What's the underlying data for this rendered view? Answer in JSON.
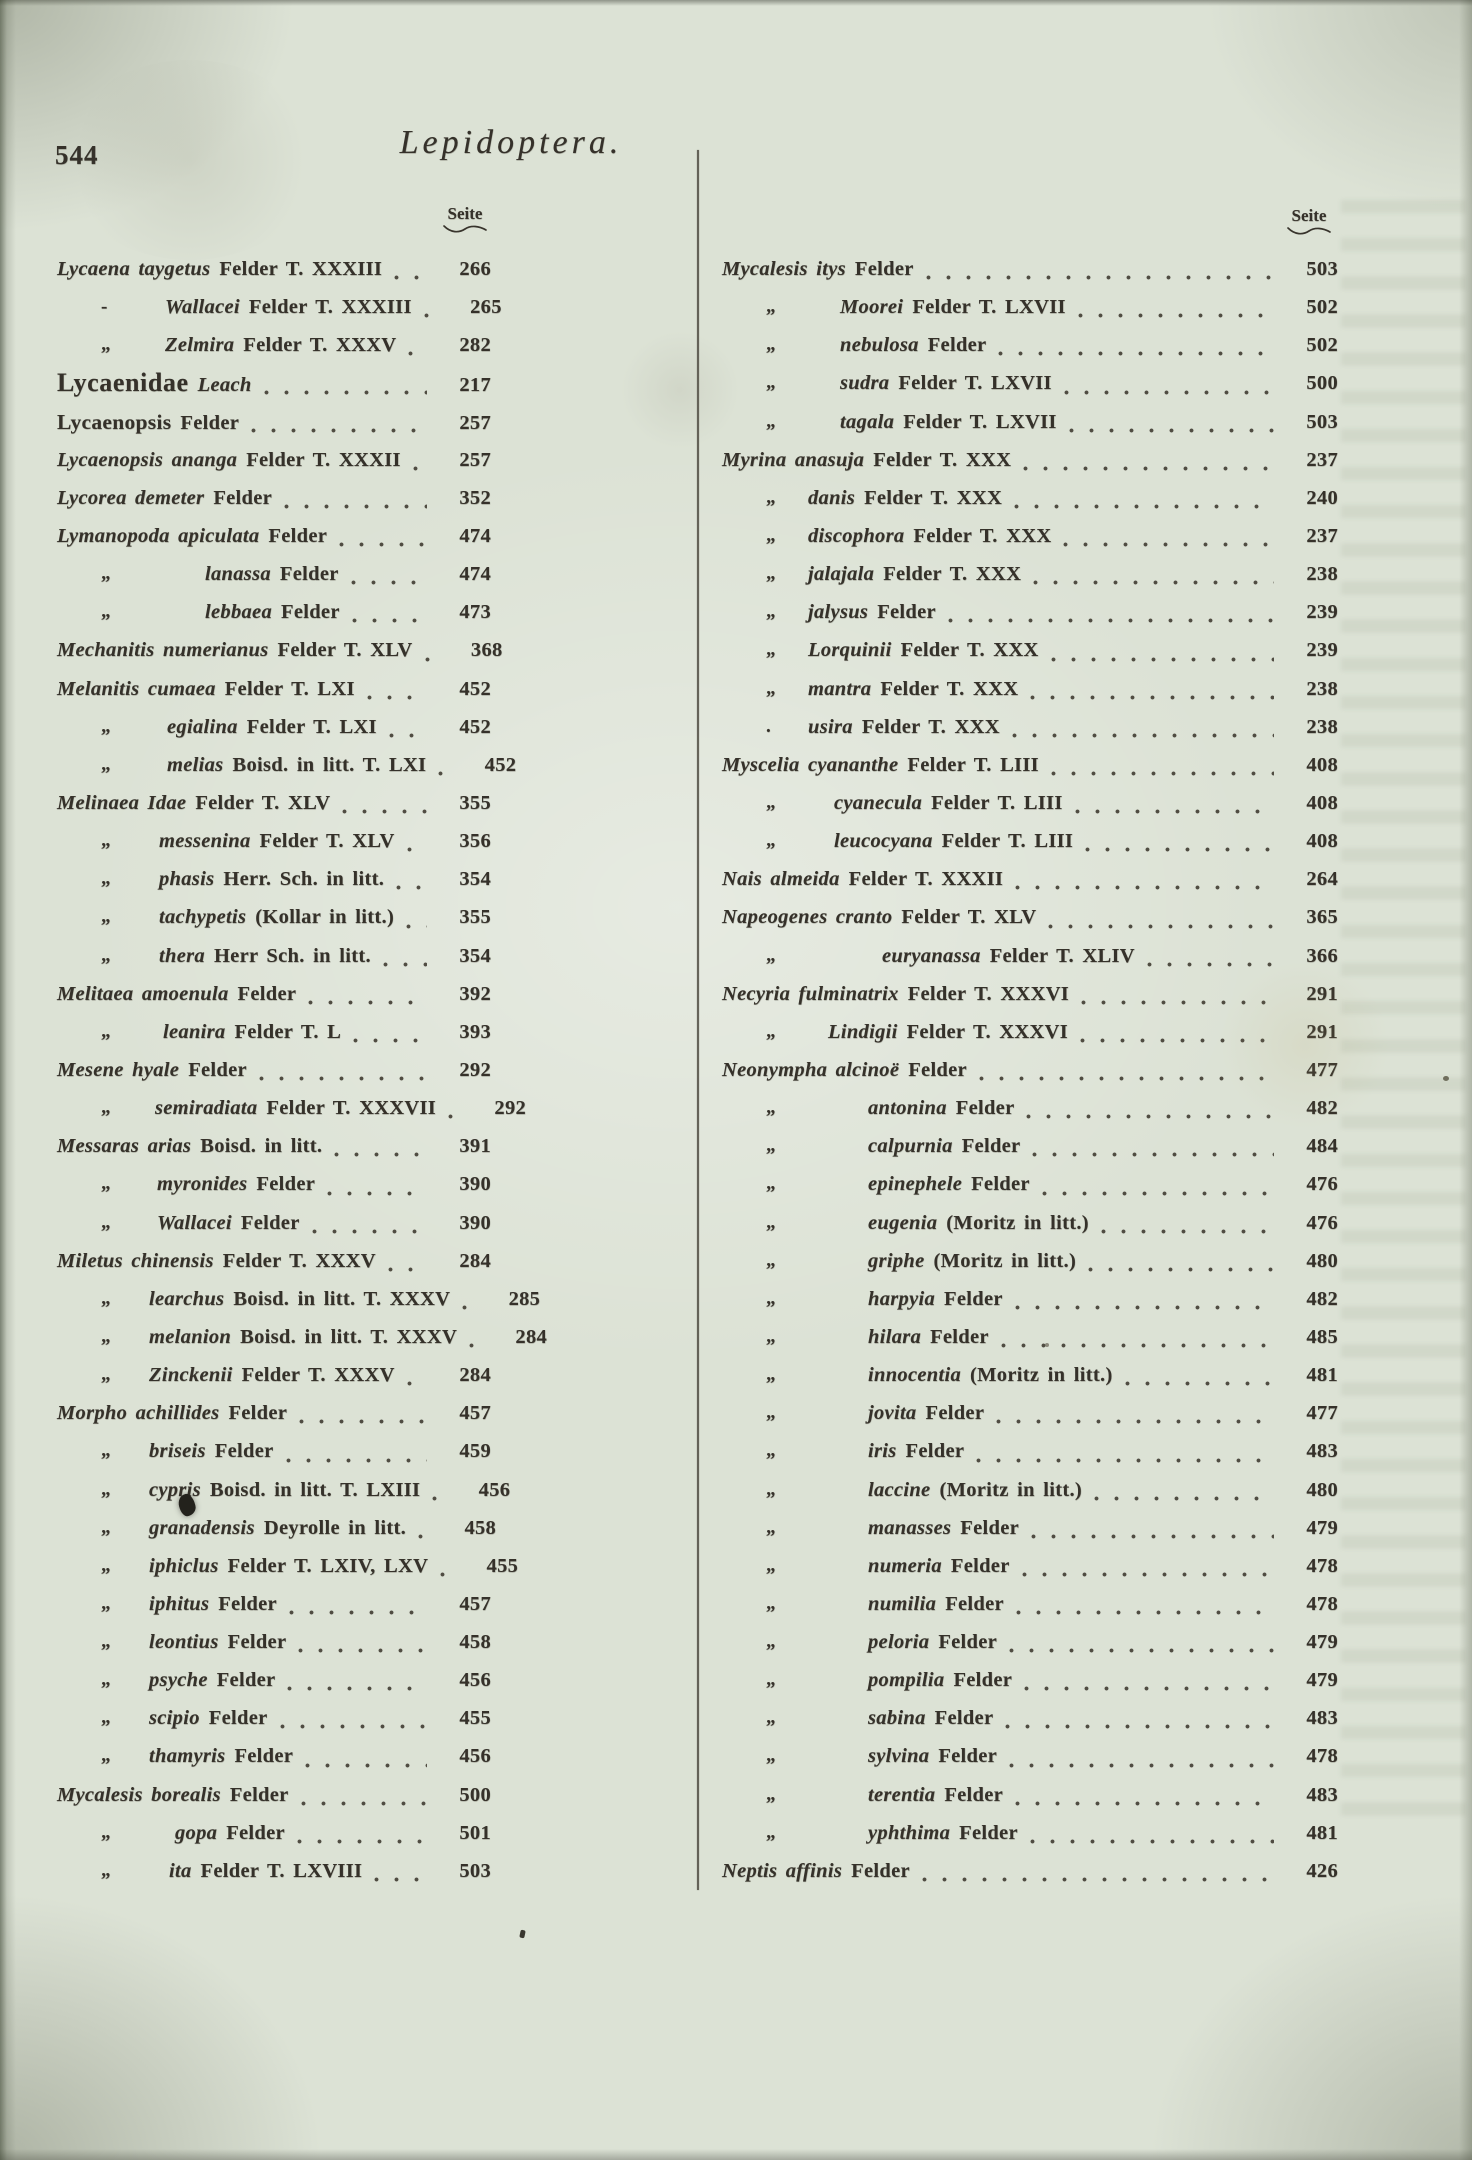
{
  "page": {
    "number": "544",
    "title": "Lepidoptera.",
    "column_header": "Seite"
  },
  "colors": {
    "ink": "#35312a",
    "paper": "#dce2d5"
  },
  "columns": {
    "left": [
      {
        "q": "",
        "n": "Lycaena taygetus",
        "a": "Felder T. XXXIII",
        "p": "266",
        "k": "g",
        "i": 0
      },
      {
        "q": "-",
        "n": "Wallacei",
        "a": "Felder T. XXXIII",
        "p": "265",
        "k": "s",
        "i": 108
      },
      {
        "q": "„",
        "n": "Zelmira",
        "a": "Felder T. XXXV",
        "p": "282",
        "k": "s",
        "i": 108
      },
      {
        "q": "",
        "n": "Lycaenidae",
        "a": "Leach",
        "p": "217",
        "k": "f",
        "i": 0
      },
      {
        "q": "",
        "n": "Lycaenopsis",
        "a": "Felder",
        "p": "257",
        "k": "b",
        "i": 0
      },
      {
        "q": "",
        "n": "Lycaenopsis ananga",
        "a": "Felder T. XXXII",
        "p": "257",
        "k": "g",
        "i": 0
      },
      {
        "q": "",
        "n": "Lycorea demeter",
        "a": "Felder",
        "p": "352",
        "k": "g",
        "i": 0
      },
      {
        "q": "",
        "n": "Lymanopoda apiculata",
        "a": "Felder",
        "p": "474",
        "k": "g",
        "i": 0
      },
      {
        "q": "„",
        "n": "lanassa",
        "a": "Felder",
        "p": "474",
        "k": "s",
        "i": 148
      },
      {
        "q": "„",
        "n": "lebbaea",
        "a": "Felder",
        "p": "473",
        "k": "s",
        "i": 148
      },
      {
        "q": "",
        "n": "Mechanitis numerianus",
        "a": "Felder T. XLV",
        "p": "368",
        "k": "g",
        "i": 0
      },
      {
        "q": "",
        "n": "Melanitis cumaea",
        "a": "Felder T. LXI",
        "p": "452",
        "k": "g",
        "i": 0
      },
      {
        "q": "„",
        "n": "egialina",
        "a": "Felder T. LXI",
        "p": "452",
        "k": "s",
        "i": 110
      },
      {
        "q": "„",
        "n": "melias",
        "a": "Boisd. in litt. T. LXI",
        "p": "452",
        "k": "s",
        "i": 110
      },
      {
        "q": "",
        "n": "Melinaea Idae",
        "a": "Felder T. XLV",
        "p": "355",
        "k": "g",
        "i": 0
      },
      {
        "q": "„",
        "n": "messenina",
        "a": "Felder T. XLV",
        "p": "356",
        "k": "s",
        "i": 102
      },
      {
        "q": "„",
        "n": "phasis",
        "a": "Herr. Sch. in litt.",
        "p": "354",
        "k": "s",
        "i": 102
      },
      {
        "q": "„",
        "n": "tachypetis",
        "a": "(Kollar in litt.)",
        "p": "355",
        "k": "s",
        "i": 102
      },
      {
        "q": "„",
        "n": "thera",
        "a": "Herr Sch. in litt.",
        "p": "354",
        "k": "s",
        "i": 102
      },
      {
        "q": "",
        "n": "Melitaea amoenula",
        "a": "Felder",
        "p": "392",
        "k": "g",
        "i": 0
      },
      {
        "q": "„",
        "n": "leanira",
        "a": "Felder T. L",
        "p": "393",
        "k": "s",
        "i": 106
      },
      {
        "q": "",
        "n": "Mesene hyale",
        "a": "Felder",
        "p": "292",
        "k": "g",
        "i": 0
      },
      {
        "q": "„",
        "n": "semiradiata",
        "a": "Felder T. XXXVII",
        "p": "292",
        "k": "s",
        "i": 98
      },
      {
        "q": "",
        "n": "Messaras arias",
        "a": "Boisd. in litt.",
        "p": "391",
        "k": "g",
        "i": 0
      },
      {
        "q": "„",
        "n": "myronides",
        "a": "Felder",
        "p": "390",
        "k": "s",
        "i": 100
      },
      {
        "q": "„",
        "n": "Wallacei",
        "a": "Felder",
        "p": "390",
        "k": "s",
        "i": 100
      },
      {
        "q": "",
        "n": "Miletus chinensis",
        "a": "Felder T. XXXV",
        "p": "284",
        "k": "g",
        "i": 0
      },
      {
        "q": "„",
        "n": "learchus",
        "a": "Boisd. in litt. T. XXXV",
        "p": "285",
        "k": "s",
        "i": 92
      },
      {
        "q": "„",
        "n": "melanion",
        "a": "Boisd. in litt. T. XXXV",
        "p": "284",
        "k": "s",
        "i": 92
      },
      {
        "q": "„",
        "n": "Zinckenii",
        "a": "Felder T. XXXV",
        "p": "284",
        "k": "s",
        "i": 92
      },
      {
        "q": "",
        "n": "Morpho achillides",
        "a": "Felder",
        "p": "457",
        "k": "g",
        "i": 0
      },
      {
        "q": "„",
        "n": "briseis",
        "a": "Felder",
        "p": "459",
        "k": "s",
        "i": 92
      },
      {
        "q": "„",
        "n": "cypris",
        "a": "Boisd. in litt. T. LXIII",
        "p": "456",
        "k": "s",
        "i": 92
      },
      {
        "q": "„",
        "n": "granadensis",
        "a": "Deyrolle in litt.",
        "p": "458",
        "k": "s",
        "i": 92
      },
      {
        "q": "„",
        "n": "iphiclus",
        "a": "Felder T. LXIV, LXV",
        "p": "455",
        "k": "s",
        "i": 92
      },
      {
        "q": "„",
        "n": "iphitus",
        "a": "Felder",
        "p": "457",
        "k": "s",
        "i": 92
      },
      {
        "q": "„",
        "n": "leontius",
        "a": "Felder",
        "p": "458",
        "k": "s",
        "i": 92
      },
      {
        "q": "„",
        "n": "psyche",
        "a": "Felder",
        "p": "456",
        "k": "s",
        "i": 92
      },
      {
        "q": "„",
        "n": "scipio",
        "a": "Felder",
        "p": "455",
        "k": "s",
        "i": 92
      },
      {
        "q": "„",
        "n": "thamyris",
        "a": "Felder",
        "p": "456",
        "k": "s",
        "i": 92
      },
      {
        "q": "",
        "n": "Mycalesis borealis",
        "a": "Felder",
        "p": "500",
        "k": "g",
        "i": 0
      },
      {
        "q": "„",
        "n": "gopa",
        "a": "Felder",
        "p": "501",
        "k": "s",
        "i": 118
      },
      {
        "q": "„",
        "n": "ita",
        "a": "Felder T. LXVIII",
        "p": "503",
        "k": "s",
        "i": 112
      }
    ],
    "right": [
      {
        "q": "",
        "n": "Mycalesis itys",
        "a": "Felder",
        "p": "503",
        "k": "g",
        "i": 0
      },
      {
        "q": "„",
        "n": "Moorei",
        "a": "Felder T. LXVII",
        "p": "502",
        "k": "s",
        "i": 118
      },
      {
        "q": "„",
        "n": "nebulosa",
        "a": "Felder",
        "p": "502",
        "k": "s",
        "i": 118
      },
      {
        "q": "„",
        "n": "sudra",
        "a": "Felder T. LXVII",
        "p": "500",
        "k": "s",
        "i": 118
      },
      {
        "q": "„",
        "n": "tagala",
        "a": "Felder T. LXVII",
        "p": "503",
        "k": "s",
        "i": 118
      },
      {
        "q": "",
        "n": "Myrina anasuja",
        "a": "Felder T. XXX",
        "p": "237",
        "k": "g",
        "i": 0
      },
      {
        "q": "„",
        "n": "danis",
        "a": "Felder T. XXX",
        "p": "240",
        "k": "s",
        "i": 86
      },
      {
        "q": "„",
        "n": "discophora",
        "a": "Felder T. XXX",
        "p": "237",
        "k": "s",
        "i": 86
      },
      {
        "q": "„",
        "n": "jalajala",
        "a": "Felder T. XXX",
        "p": "238",
        "k": "s",
        "i": 86
      },
      {
        "q": "„",
        "n": "jalysus",
        "a": "Felder",
        "p": "239",
        "k": "s",
        "i": 86
      },
      {
        "q": "„",
        "n": "Lorquinii",
        "a": "Felder T. XXX",
        "p": "239",
        "k": "s",
        "i": 86
      },
      {
        "q": "„",
        "n": "mantra",
        "a": "Felder T. XXX",
        "p": "238",
        "k": "s",
        "i": 86
      },
      {
        "q": ".",
        "n": "usira",
        "a": "Felder T. XXX",
        "p": "238",
        "k": "s",
        "i": 86
      },
      {
        "q": "",
        "n": "Myscelia cyananthe",
        "a": "Felder T. LIII",
        "p": "408",
        "k": "g",
        "i": 0
      },
      {
        "q": "„",
        "n": "cyanecula",
        "a": "Felder T. LIII",
        "p": "408",
        "k": "s",
        "i": 112
      },
      {
        "q": "„",
        "n": "leucocyana",
        "a": "Felder T. LIII",
        "p": "408",
        "k": "s",
        "i": 112
      },
      {
        "q": "",
        "n": "Nais almeida",
        "a": "Felder T. XXXII",
        "p": "264",
        "k": "g",
        "i": 0
      },
      {
        "q": "",
        "n": "Napeogenes cranto",
        "a": "Felder T. XLV",
        "p": "365",
        "k": "g",
        "i": 0
      },
      {
        "q": "„",
        "n": "euryanassa",
        "a": "Felder T. XLIV",
        "p": "366",
        "k": "s",
        "i": 160
      },
      {
        "q": "",
        "n": "Necyria fulminatrix",
        "a": "Felder T. XXXVI",
        "p": "291",
        "k": "g",
        "i": 0
      },
      {
        "q": "„",
        "n": "Lindigii",
        "a": "Felder T. XXXVI",
        "p": "291",
        "k": "s",
        "i": 106
      },
      {
        "q": "",
        "n": "Neonympha alcinoë",
        "a": "Felder",
        "p": "477",
        "k": "g",
        "i": 0
      },
      {
        "q": "„",
        "n": "antonina",
        "a": "Felder",
        "p": "482",
        "k": "s",
        "i": 146
      },
      {
        "q": "„",
        "n": "calpurnia",
        "a": "Felder",
        "p": "484",
        "k": "s",
        "i": 146
      },
      {
        "q": "„",
        "n": "epinephele",
        "a": "Felder",
        "p": "476",
        "k": "s",
        "i": 146
      },
      {
        "q": "„",
        "n": "eugenia",
        "a": "(Moritz in litt.)",
        "p": "476",
        "k": "s",
        "i": 146
      },
      {
        "q": "„",
        "n": "griphe",
        "a": "(Moritz in litt.)",
        "p": "480",
        "k": "s",
        "i": 146
      },
      {
        "q": "„",
        "n": "harpyia",
        "a": "Felder",
        "p": "482",
        "k": "s",
        "i": 146
      },
      {
        "q": "„",
        "n": "hilara",
        "a": "Felder",
        "p": "485",
        "k": "s",
        "i": 146
      },
      {
        "q": "„",
        "n": "innocentia",
        "a": "(Moritz in litt.)",
        "p": "481",
        "k": "s",
        "i": 146
      },
      {
        "q": "„",
        "n": "jovita",
        "a": "Felder",
        "p": "477",
        "k": "s",
        "i": 146
      },
      {
        "q": "„",
        "n": "iris",
        "a": "Felder",
        "p": "483",
        "k": "s",
        "i": 146
      },
      {
        "q": "„",
        "n": "laccine",
        "a": "(Moritz in litt.)",
        "p": "480",
        "k": "s",
        "i": 146
      },
      {
        "q": "„",
        "n": "manasses",
        "a": "Felder",
        "p": "479",
        "k": "s",
        "i": 146
      },
      {
        "q": "„",
        "n": "numeria",
        "a": "Felder",
        "p": "478",
        "k": "s",
        "i": 146
      },
      {
        "q": "„",
        "n": "numilia",
        "a": "Felder",
        "p": "478",
        "k": "s",
        "i": 146
      },
      {
        "q": "„",
        "n": "peloria",
        "a": "Felder",
        "p": "479",
        "k": "s",
        "i": 146
      },
      {
        "q": "„",
        "n": "pompilia",
        "a": "Felder",
        "p": "479",
        "k": "s",
        "i": 146
      },
      {
        "q": "„",
        "n": "sabina",
        "a": "Felder",
        "p": "483",
        "k": "s",
        "i": 146
      },
      {
        "q": "„",
        "n": "sylvina",
        "a": "Felder",
        "p": "478",
        "k": "s",
        "i": 146
      },
      {
        "q": "„",
        "n": "terentia",
        "a": "Felder",
        "p": "483",
        "k": "s",
        "i": 146
      },
      {
        "q": "„",
        "n": "yphthima",
        "a": "Felder",
        "p": "481",
        "k": "s",
        "i": 146
      },
      {
        "q": "",
        "n": "Neptis affinis",
        "a": "Felder",
        "p": "426",
        "k": "g",
        "i": 0
      }
    ]
  }
}
